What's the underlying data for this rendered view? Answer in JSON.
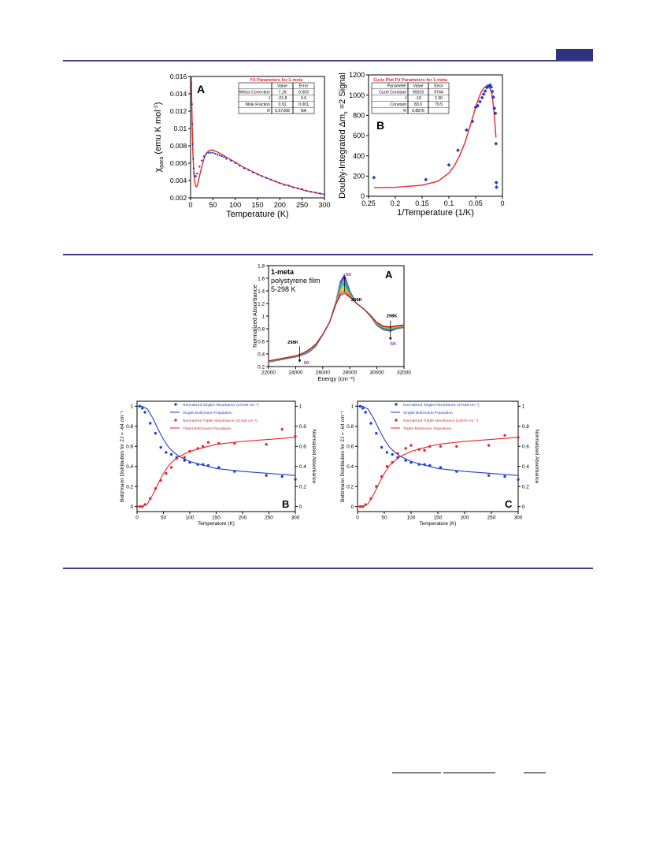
{
  "colors": {
    "rule": "#3c3f8f",
    "blue": "#1f3fd1",
    "red": "#e8262b",
    "violet": "#a030c0"
  },
  "chart_data": [
    {
      "id": "fig1A",
      "type": "line",
      "panel_label": "A",
      "xlabel": "Temperature (K)",
      "ylabel_parts": [
        "χ",
        "para",
        " (emu K mol",
        "-1",
        ")"
      ],
      "xlim": [
        0,
        300
      ],
      "ylim": [
        0.002,
        0.016
      ],
      "xticks": [
        0,
        50,
        100,
        150,
        200,
        250,
        300
      ],
      "yticks": [
        0.002,
        0.004,
        0.006,
        0.008,
        0.01,
        0.012,
        0.014,
        0.016
      ],
      "ytick_labels": [
        "0.002",
        "0.004",
        "0.006",
        "0.008",
        "0.01",
        "0.012",
        "0.014",
        "0.016"
      ],
      "series": [
        {
          "kind": "points",
          "color": "blue",
          "x": [
            2,
            3,
            4,
            5,
            6,
            7,
            8,
            10,
            12,
            15,
            20,
            25,
            30,
            35,
            40,
            45,
            50,
            55,
            60,
            65,
            70,
            75,
            80,
            90,
            100,
            110,
            120,
            130,
            140,
            150,
            160,
            170,
            180,
            190,
            200,
            210,
            220,
            230,
            240,
            250,
            260,
            270,
            280,
            290,
            300
          ],
          "y": [
            0.0152,
            0.0128,
            0.0105,
            0.0082,
            0.0065,
            0.0054,
            0.0048,
            0.0045,
            0.0045,
            0.0048,
            0.0056,
            0.0063,
            0.0068,
            0.0071,
            0.0072,
            0.0072,
            0.0072,
            0.0071,
            0.007,
            0.0069,
            0.0068,
            0.0067,
            0.0065,
            0.0063,
            0.006,
            0.0057,
            0.0054,
            0.0052,
            0.0049,
            0.0047,
            0.0045,
            0.0043,
            0.0041,
            0.0039,
            0.0037,
            0.0035,
            0.0034,
            0.0032,
            0.0031,
            0.003,
            0.0028,
            0.0027,
            0.0026,
            0.0025,
            0.0024
          ]
        },
        {
          "kind": "line",
          "color": "red",
          "x": [
            1.5,
            2,
            3,
            4,
            5,
            6,
            8,
            10,
            12,
            14,
            16,
            18,
            20,
            25,
            30,
            35,
            40,
            45,
            50,
            55,
            60,
            70,
            80,
            90,
            100,
            110,
            120,
            140,
            160,
            180,
            200,
            220,
            240,
            260,
            280,
            300
          ],
          "y": [
            0.016,
            0.015,
            0.012,
            0.0095,
            0.0075,
            0.0062,
            0.0045,
            0.0036,
            0.0033,
            0.0033,
            0.0036,
            0.004,
            0.0045,
            0.0056,
            0.0065,
            0.0071,
            0.0074,
            0.0075,
            0.0075,
            0.0074,
            0.0073,
            0.007,
            0.0067,
            0.0064,
            0.0061,
            0.0058,
            0.0055,
            0.005,
            0.0045,
            0.0041,
            0.0037,
            0.0034,
            0.0031,
            0.0028,
            0.0026,
            0.0024
          ]
        }
      ],
      "table": {
        "title": "Fit Parameters for 1-meta",
        "header": [
          "",
          "Value",
          "Error"
        ],
        "rows": [
          [
            "Weiss Correction",
            "7.19",
            "0.003"
          ],
          [
            "J",
            "-31.8",
            "0.6"
          ],
          [
            "Mole Fraction",
            "0.91",
            "0.001"
          ],
          [
            "R",
            "0.97268",
            "NA"
          ]
        ]
      }
    },
    {
      "id": "fig1B",
      "type": "scatter",
      "panel_label": "B",
      "xlabel": "1/Temperature (1/K)",
      "ylabel_parts": [
        "Doubly-Integrated Δm",
        "s",
        " =2 Signal"
      ],
      "xlim": [
        0.25,
        0
      ],
      "ylim": [
        0,
        1200
      ],
      "xticks": [
        0.25,
        0.2,
        0.15,
        0.1,
        0.05,
        0
      ],
      "xtick_labels": [
        "0.25",
        "0.2",
        "0.15",
        "0.1",
        "0.05",
        "0"
      ],
      "yticks": [
        0,
        200,
        400,
        600,
        800,
        1000,
        1200
      ],
      "ytick_labels": [
        "0",
        "200",
        "400",
        "600",
        "800",
        "1000",
        "1200"
      ],
      "series": [
        {
          "kind": "points",
          "color": "blue",
          "marker": "diamond",
          "x": [
            0.24,
            0.143,
            0.1,
            0.083,
            0.067,
            0.056,
            0.05,
            0.046,
            0.042,
            0.038,
            0.035,
            0.032,
            0.029,
            0.027,
            0.025,
            0.023,
            0.021,
            0.019,
            0.017,
            0.015,
            0.013,
            0.012,
            0.0115,
            0.011
          ],
          "y": [
            185,
            165,
            310,
            455,
            655,
            740,
            880,
            895,
            935,
            975,
            1010,
            1040,
            1075,
            1090,
            1090,
            1100,
            1080,
            1035,
            980,
            870,
            820,
            520,
            135,
            90
          ]
        },
        {
          "kind": "line",
          "color": "red",
          "x": [
            0.24,
            0.2,
            0.15,
            0.12,
            0.1,
            0.09,
            0.08,
            0.07,
            0.06,
            0.05,
            0.045,
            0.04,
            0.035,
            0.03,
            0.025,
            0.02,
            0.017,
            0.014,
            0.012
          ],
          "y": [
            85,
            88,
            110,
            150,
            230,
            300,
            400,
            530,
            700,
            880,
            960,
            1025,
            1070,
            1090,
            1085,
            1020,
            900,
            720,
            580
          ]
        }
      ],
      "table": {
        "title": "Curie Plot Fit Parameters for 1-meta",
        "header": [
          "Parameter",
          "Value",
          "Error"
        ],
        "rows": [
          [
            "Curie Constant",
            "90025",
            "9744"
          ],
          [
            "J",
            "-19",
            "2.30"
          ],
          [
            "Constant",
            "83.9",
            "79.5"
          ],
          [
            "R",
            "0.8876",
            ""
          ]
        ]
      }
    },
    {
      "id": "fig2A",
      "type": "line",
      "panel_label": "A",
      "xlabel": "Energy (cm⁻¹)",
      "ylabel": "Normalized Absorbance",
      "xlim": [
        22000,
        32000
      ],
      "ylim": [
        0.2,
        1.8
      ],
      "xticks": [
        22000,
        24000,
        26000,
        28000,
        30000,
        32000
      ],
      "xtick_labels": [
        "22000",
        "24000",
        "26000",
        "28000",
        "30000",
        "32000"
      ],
      "yticks": [
        0.2,
        0.4,
        0.6,
        0.8,
        1,
        1.2,
        1.4,
        1.6,
        1.8
      ],
      "ytick_labels": [
        "0.2",
        "0.4",
        "0.6",
        "0.8",
        "1",
        "1.2",
        "1.4",
        "1.6",
        "1.8"
      ],
      "sample_label_bold": "1-meta",
      "sample_label_lines": [
        "polystyrene film",
        "5-298 K"
      ],
      "annotations": [
        {
          "text": "5K",
          "color": "violet",
          "x": 27700,
          "y": 1.64
        },
        {
          "text": "298K",
          "color": "black",
          "x": 28100,
          "y": 1.24
        },
        {
          "text": "298K",
          "color": "black",
          "x": 30700,
          "y": 0.98
        },
        {
          "text": "5K",
          "color": "violet",
          "x": 31000,
          "y": 0.54
        },
        {
          "text": "298K",
          "color": "black",
          "x": 23400,
          "y": 0.56
        },
        {
          "text": "5K",
          "color": "violet",
          "x": 24600,
          "y": 0.24
        }
      ],
      "x": [
        22000,
        23000,
        24000,
        24500,
        25000,
        25500,
        26000,
        26500,
        27000,
        27300,
        27600,
        28000,
        28500,
        29000,
        29500,
        30000,
        30500,
        31000,
        31500,
        32000
      ],
      "curve_5K": [
        0.27,
        0.31,
        0.35,
        0.38,
        0.43,
        0.52,
        0.7,
        0.9,
        1.25,
        1.55,
        1.66,
        1.4,
        1.2,
        1.12,
        1.0,
        0.85,
        0.78,
        0.76,
        0.8,
        0.82
      ],
      "curve_298K": [
        0.29,
        0.33,
        0.37,
        0.41,
        0.47,
        0.56,
        0.71,
        0.9,
        1.2,
        1.33,
        1.36,
        1.3,
        1.2,
        1.12,
        1.02,
        0.9,
        0.84,
        0.83,
        0.85,
        0.86
      ]
    },
    {
      "id": "fig2B",
      "type": "scatter",
      "panel_label": "B",
      "xlabel": "Temperature (K)",
      "ylabel_left": "Boltzmann Distribution for 2J = -64 cm⁻¹",
      "ylabel_right": "Normalized Absorbance",
      "xlim": [
        0,
        300
      ],
      "ylim": [
        -0.05,
        1.05
      ],
      "xticks": [
        0,
        50,
        100,
        150,
        200,
        250,
        300
      ],
      "yticks": [
        0,
        0.2,
        0.4,
        0.6,
        0.8,
        1
      ],
      "ytick_labels": [
        "0",
        "0.2",
        "0.4",
        "0.6",
        "0.8",
        "1"
      ],
      "legend": [
        {
          "kind": "point",
          "color": "blue",
          "label": "Normalized Singlet Absorbance (27548 cm⁻¹)"
        },
        {
          "kind": "line",
          "color": "blue",
          "label": "Singlet Boltzmann Population"
        },
        {
          "kind": "point",
          "color": "red",
          "label": "Normalized Triplet Absorbance (31348 cm⁻¹)"
        },
        {
          "kind": "line",
          "color": "red",
          "label": "Triplet Boltzmann Population"
        }
      ],
      "series": [
        {
          "kind": "points",
          "color": "blue",
          "x": [
            5,
            10,
            15,
            25,
            35,
            45,
            55,
            65,
            75,
            90,
            100,
            115,
            125,
            135,
            155,
            185,
            245,
            275,
            300
          ],
          "y": [
            1.0,
            0.98,
            0.94,
            0.83,
            0.73,
            0.59,
            0.54,
            0.52,
            0.49,
            0.46,
            0.44,
            0.42,
            0.42,
            0.41,
            0.39,
            0.35,
            0.31,
            0.3,
            0.27
          ]
        },
        {
          "kind": "points",
          "color": "red",
          "x": [
            5,
            10,
            15,
            25,
            35,
            45,
            55,
            65,
            75,
            90,
            100,
            115,
            125,
            135,
            155,
            185,
            245,
            275,
            300
          ],
          "y": [
            0.0,
            0.0,
            0.02,
            0.08,
            0.18,
            0.26,
            0.33,
            0.39,
            0.48,
            0.49,
            0.55,
            0.58,
            0.6,
            0.64,
            0.63,
            0.63,
            0.62,
            0.77,
            0.7
          ]
        },
        {
          "kind": "line",
          "color": "blue",
          "x": [
            0,
            10,
            20,
            30,
            40,
            50,
            60,
            70,
            80,
            100,
            120,
            150,
            200,
            250,
            300
          ],
          "y": [
            1.0,
            1.0,
            0.97,
            0.88,
            0.77,
            0.67,
            0.59,
            0.54,
            0.5,
            0.45,
            0.42,
            0.38,
            0.35,
            0.33,
            0.31
          ]
        },
        {
          "kind": "line",
          "color": "red",
          "x": [
            0,
            10,
            20,
            30,
            40,
            50,
            60,
            70,
            80,
            100,
            120,
            150,
            200,
            250,
            300
          ],
          "y": [
            0.0,
            0.0,
            0.03,
            0.12,
            0.23,
            0.33,
            0.41,
            0.46,
            0.5,
            0.55,
            0.58,
            0.62,
            0.65,
            0.67,
            0.69
          ]
        }
      ]
    },
    {
      "id": "fig2C",
      "type": "scatter",
      "panel_label": "C",
      "xlabel": "Temperature (K)",
      "ylabel_left": "Boltzmann Distribution for 2J = -64 cm⁻¹",
      "ylabel_right": "Normalized Absorbance",
      "xlim": [
        0,
        300
      ],
      "ylim": [
        -0.05,
        1.05
      ],
      "xticks": [
        0,
        50,
        100,
        150,
        200,
        250,
        300
      ],
      "yticks": [
        0,
        0.2,
        0.4,
        0.6,
        0.8,
        1
      ],
      "ytick_labels": [
        "0",
        "0.2",
        "0.4",
        "0.6",
        "0.8",
        "1"
      ],
      "legend": [
        {
          "kind": "point",
          "color": "blue",
          "label": "Normalized Singlet Absorbance (27548 cm⁻¹)"
        },
        {
          "kind": "line",
          "color": "blue",
          "label": "Singlet Boltzmann Population"
        },
        {
          "kind": "point",
          "color": "red",
          "label": "Normalized Triplet Absorbance (24876 cm⁻¹)"
        },
        {
          "kind": "line",
          "color": "red",
          "label": "Triplet Boltzmann Population"
        }
      ],
      "series": [
        {
          "kind": "points",
          "color": "blue",
          "x": [
            5,
            10,
            15,
            25,
            35,
            45,
            55,
            65,
            75,
            90,
            100,
            115,
            125,
            135,
            155,
            185,
            245,
            275,
            300
          ],
          "y": [
            1.0,
            0.98,
            0.94,
            0.83,
            0.73,
            0.59,
            0.54,
            0.52,
            0.49,
            0.46,
            0.44,
            0.42,
            0.42,
            0.41,
            0.39,
            0.35,
            0.31,
            0.3,
            0.27
          ]
        },
        {
          "kind": "points",
          "color": "red",
          "x": [
            5,
            10,
            15,
            25,
            35,
            45,
            55,
            65,
            75,
            90,
            100,
            115,
            125,
            135,
            155,
            185,
            245,
            275,
            300
          ],
          "y": [
            0.0,
            0.0,
            0.02,
            0.08,
            0.2,
            0.3,
            0.4,
            0.44,
            0.53,
            0.58,
            0.61,
            0.57,
            0.56,
            0.6,
            0.6,
            0.6,
            0.61,
            0.71,
            0.69
          ]
        },
        {
          "kind": "line",
          "color": "blue",
          "x": [
            0,
            10,
            20,
            30,
            40,
            50,
            60,
            70,
            80,
            100,
            120,
            150,
            200,
            250,
            300
          ],
          "y": [
            1.0,
            1.0,
            0.97,
            0.88,
            0.77,
            0.67,
            0.59,
            0.54,
            0.5,
            0.45,
            0.42,
            0.38,
            0.35,
            0.33,
            0.31
          ]
        },
        {
          "kind": "line",
          "color": "red",
          "x": [
            0,
            10,
            20,
            30,
            40,
            50,
            60,
            70,
            80,
            100,
            120,
            150,
            200,
            250,
            300
          ],
          "y": [
            0.0,
            0.0,
            0.03,
            0.12,
            0.23,
            0.33,
            0.41,
            0.46,
            0.5,
            0.55,
            0.58,
            0.62,
            0.65,
            0.67,
            0.69
          ]
        }
      ]
    }
  ]
}
